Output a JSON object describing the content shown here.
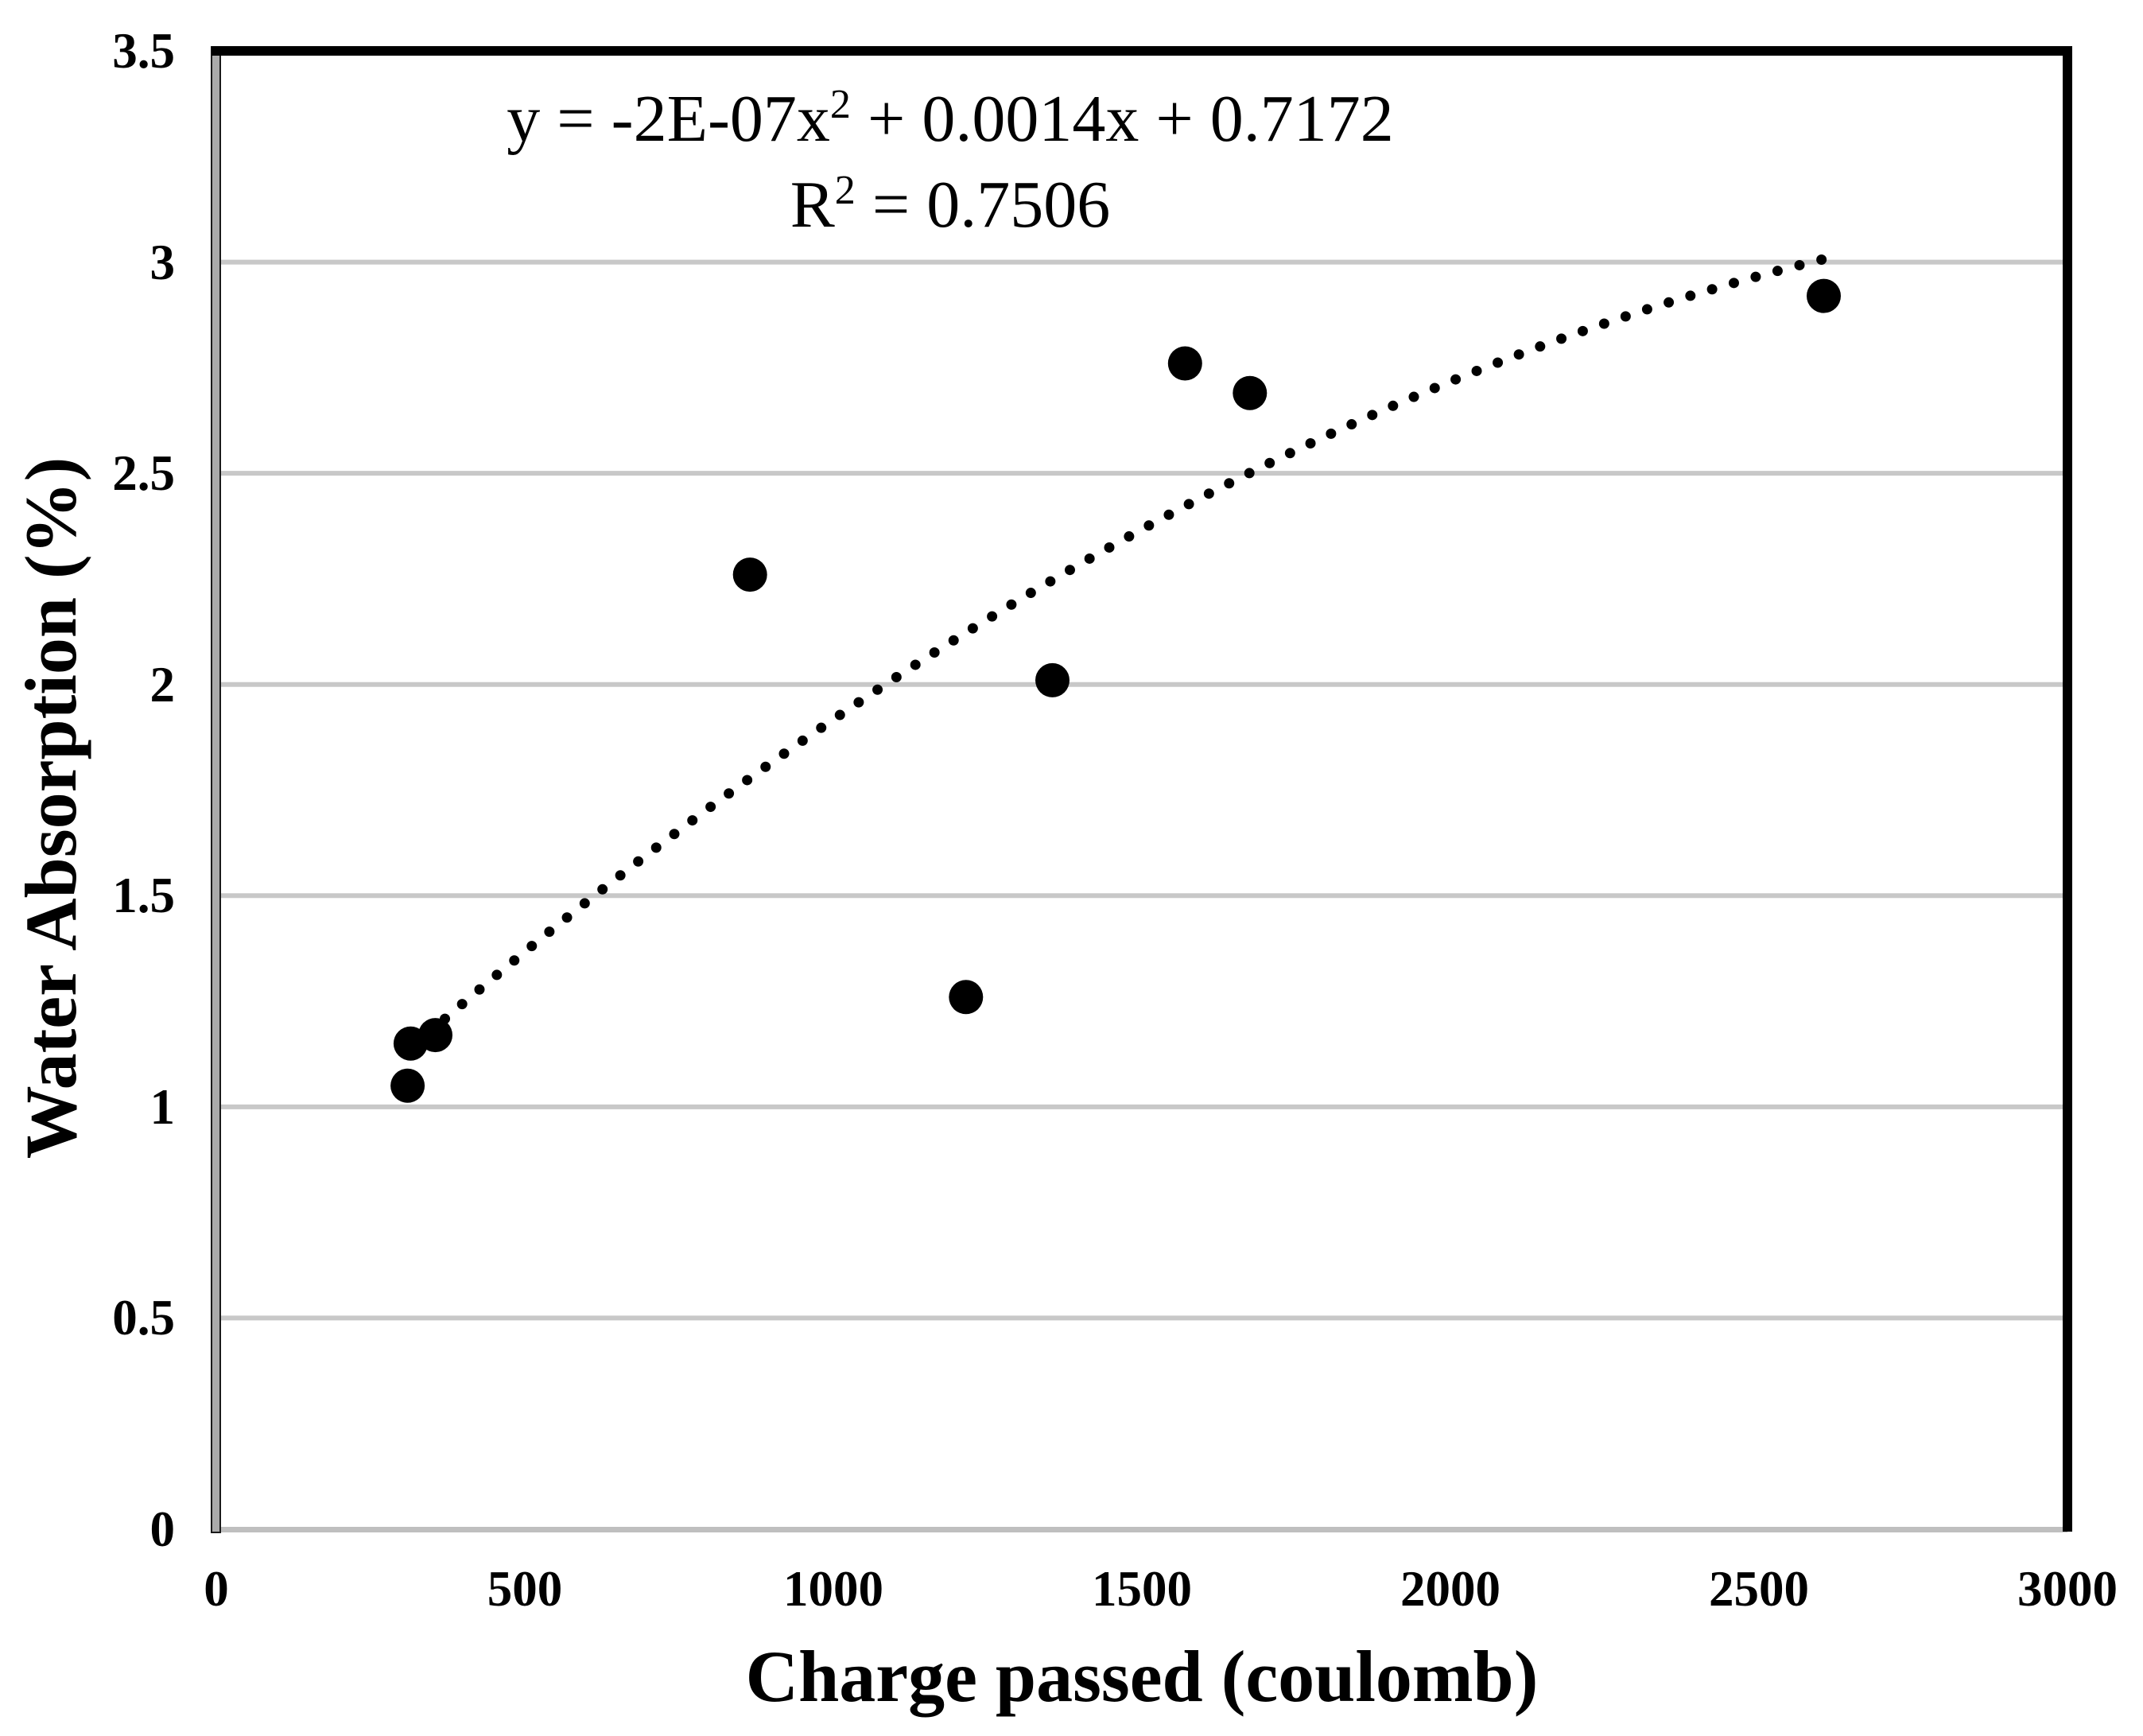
{
  "chart_data": {
    "type": "scatter",
    "title": "",
    "xlabel": "Charge passed (coulomb)",
    "ylabel": "Water Absorption (%)",
    "xlim": [
      0,
      3000
    ],
    "ylim": [
      0,
      3.5
    ],
    "x_ticks": [
      0,
      500,
      1000,
      1500,
      2000,
      2500,
      3000
    ],
    "x_tick_labels": [
      "0",
      "500",
      "1000",
      "1500",
      "2000",
      "2500",
      "3000"
    ],
    "y_ticks": [
      0,
      0.5,
      1,
      1.5,
      2,
      2.5,
      3,
      3.5
    ],
    "y_tick_labels": [
      "0",
      "0.5",
      "1",
      "1.5",
      "2",
      "2.5",
      "3",
      "3.5"
    ],
    "grid": true,
    "legend": false,
    "points": [
      [
        310,
        1.05
      ],
      [
        315,
        1.15
      ],
      [
        355,
        1.17
      ],
      [
        865,
        2.26
      ],
      [
        1215,
        1.26
      ],
      [
        1355,
        2.01
      ],
      [
        1570,
        2.76
      ],
      [
        1675,
        2.69
      ],
      [
        2605,
        2.92
      ]
    ],
    "trendline": {
      "type": "polynomial",
      "degree": 2,
      "a": -2e-07,
      "b": 0.0014,
      "c": 0.7172,
      "x_start": 315,
      "x_end": 2618,
      "style": "dotted"
    },
    "equation": {
      "prefix": "y = -2E-07x",
      "sup": "2",
      "suffix": " + 0.0014x + 0.7172"
    },
    "r2_label": {
      "prefix": "R",
      "sup": "2",
      "suffix": " = 0.7506"
    },
    "r_squared": 0.7506,
    "colors": {
      "marker": "#000000",
      "trend": "#000000",
      "gridline": "#c8c8c8",
      "axis_bottom": "#bfbfbf",
      "axis_left_fill": "#ababab",
      "frame": "#000000"
    }
  }
}
